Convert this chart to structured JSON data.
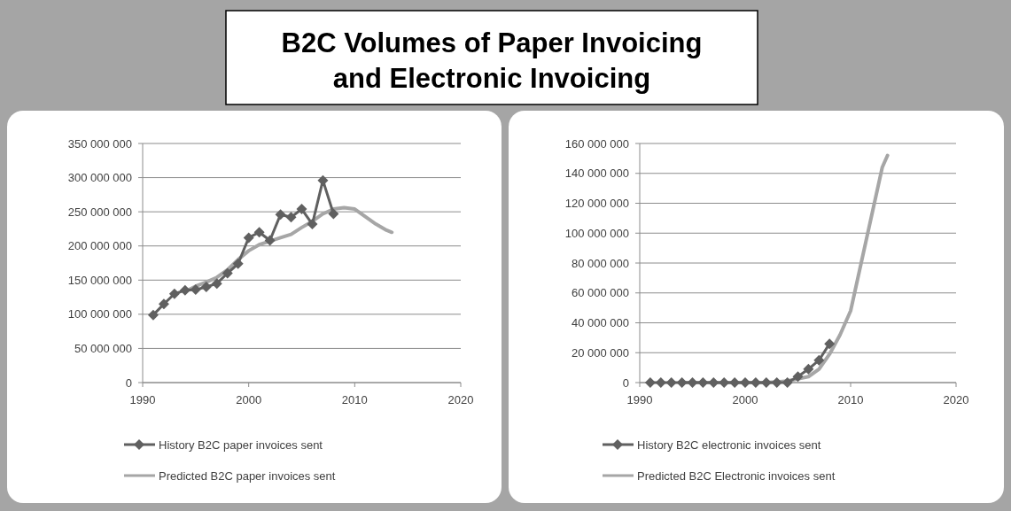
{
  "chart_data": [
    {
      "type": "line",
      "title": "B2C Volumes of Paper Invoicing and Electronic Invoicing",
      "xlim": [
        1990,
        2020
      ],
      "xticks": [
        1990,
        2000,
        2010,
        2020
      ],
      "ylim": [
        0,
        350000000
      ],
      "yticks": [
        {
          "value": 0,
          "label": "0"
        },
        {
          "value": 50000000,
          "label": "50 000 000"
        },
        {
          "value": 100000000,
          "label": "100 000 000"
        },
        {
          "value": 150000000,
          "label": "150 000 000"
        },
        {
          "value": 200000000,
          "label": "200 000 000"
        },
        {
          "value": 250000000,
          "label": "250 000 000"
        },
        {
          "value": 300000000,
          "label": "300 000 000"
        },
        {
          "value": 350000000,
          "label": "350 000 000"
        }
      ],
      "grid": "y",
      "legend": "bottom",
      "series": [
        {
          "name": "History B2C paper invoices sent",
          "color": "#606060",
          "marker": "diamond",
          "x": [
            1991,
            1992,
            1993,
            1994,
            1995,
            1996,
            1997,
            1998,
            1999,
            2000,
            2001,
            2002,
            2003,
            2004,
            2005,
            2006,
            2007,
            2008
          ],
          "values": [
            99000000,
            115000000,
            130000000,
            135000000,
            136000000,
            140000000,
            145000000,
            160000000,
            174000000,
            212000000,
            220000000,
            208000000,
            246000000,
            242000000,
            254000000,
            232000000,
            296000000,
            247000000
          ]
        },
        {
          "name": "Predicted B2C paper invoices sent",
          "color": "#a6a6a6",
          "marker": "none",
          "x": [
            1994,
            1995,
            1996,
            1997,
            1998,
            1999,
            2000,
            2001,
            2002,
            2003,
            2004,
            2005,
            2006,
            2007,
            2008,
            2009,
            2010,
            2011,
            2012,
            2013,
            2013.5
          ],
          "values": [
            133000000,
            141000000,
            147000000,
            154000000,
            165000000,
            180000000,
            193000000,
            202000000,
            207000000,
            212000000,
            217000000,
            227000000,
            236000000,
            247000000,
            254000000,
            256000000,
            254000000,
            243000000,
            232000000,
            223000000,
            220000000
          ]
        }
      ]
    },
    {
      "type": "line",
      "xlim": [
        1990,
        2020
      ],
      "xticks": [
        1990,
        2000,
        2010,
        2020
      ],
      "ylim": [
        0,
        160000000
      ],
      "yticks": [
        {
          "value": 0,
          "label": "0"
        },
        {
          "value": 20000000,
          "label": "20 000 000"
        },
        {
          "value": 40000000,
          "label": "40 000 000"
        },
        {
          "value": 60000000,
          "label": "60 000 000"
        },
        {
          "value": 80000000,
          "label": "80 000 000"
        },
        {
          "value": 100000000,
          "label": "100 000 000"
        },
        {
          "value": 120000000,
          "label": "120 000 000"
        },
        {
          "value": 140000000,
          "label": "140 000 000"
        },
        {
          "value": 160000000,
          "label": "160 000 000"
        }
      ],
      "grid": "y",
      "legend": "bottom",
      "series": [
        {
          "name": "History B2C electronic invoices sent",
          "color": "#606060",
          "marker": "diamond",
          "x": [
            1991,
            1992,
            1993,
            1994,
            1995,
            1996,
            1997,
            1998,
            1999,
            2000,
            2001,
            2002,
            2003,
            2004,
            2005,
            2006,
            2007,
            2008
          ],
          "values": [
            0,
            0,
            0,
            0,
            0,
            0,
            0,
            0,
            0,
            0,
            0,
            0,
            0,
            0,
            4000000,
            9000000,
            15000000,
            26000000
          ]
        },
        {
          "name": "Predicted B2C Electronic invoices sent",
          "color": "#a6a6a6",
          "marker": "none",
          "x": [
            1994,
            1996,
            1998,
            2000,
            2002,
            2003,
            2004,
            2005,
            2006,
            2007,
            2008,
            2009,
            2010,
            2011,
            2012,
            2013,
            2013.5
          ],
          "values": [
            0,
            0,
            0,
            0,
            0,
            500000,
            1000000,
            2500000,
            4000000,
            9000000,
            19000000,
            32000000,
            48000000,
            80000000,
            112000000,
            144000000,
            152000000
          ]
        }
      ]
    }
  ]
}
